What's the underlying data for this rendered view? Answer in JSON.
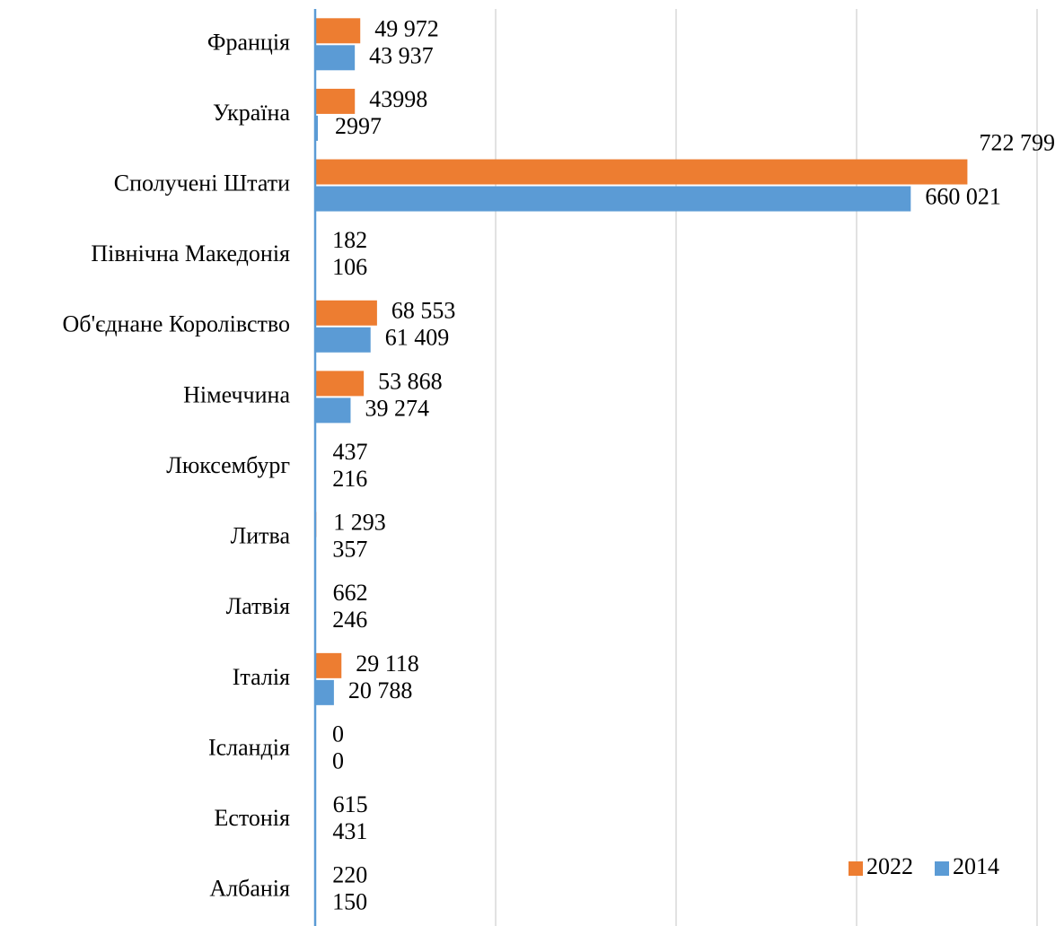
{
  "chart_data": {
    "type": "bar",
    "orientation": "horizontal",
    "categories": [
      "Франція",
      "Україна",
      "Сполучені Штати",
      "Північна Македонія",
      "Об'єднане Королівство",
      "Німеччина",
      "Люксембург",
      "Литва",
      "Латвія",
      "Італія",
      "Ісландія",
      "Естонія",
      "Албанія"
    ],
    "series": [
      {
        "name": "2022",
        "color": "#ed7d31",
        "values": [
          49972,
          43998,
          722799,
          182,
          68553,
          53868,
          437,
          1293,
          662,
          29118,
          0,
          615,
          220
        ],
        "value_labels": [
          "49 972",
          "43998",
          "722 799",
          "182",
          "68 553",
          "53 868",
          "437",
          "1 293",
          "662",
          "29 118",
          "0",
          "615",
          "220"
        ]
      },
      {
        "name": "2014",
        "color": "#5b9bd5",
        "values": [
          43937,
          2997,
          660021,
          106,
          61409,
          39274,
          216,
          357,
          246,
          20788,
          0,
          431,
          150
        ],
        "value_labels": [
          "43 937",
          "2997",
          "660 021",
          "106",
          "61 409",
          "39 274",
          "216",
          "357",
          "246",
          "20 788",
          "0",
          "431",
          "150"
        ]
      }
    ],
    "xlim": [
      0,
      800000
    ],
    "xticks": [
      0,
      200000,
      400000,
      600000,
      800000
    ],
    "grid": true,
    "legend": "bottom-right"
  }
}
